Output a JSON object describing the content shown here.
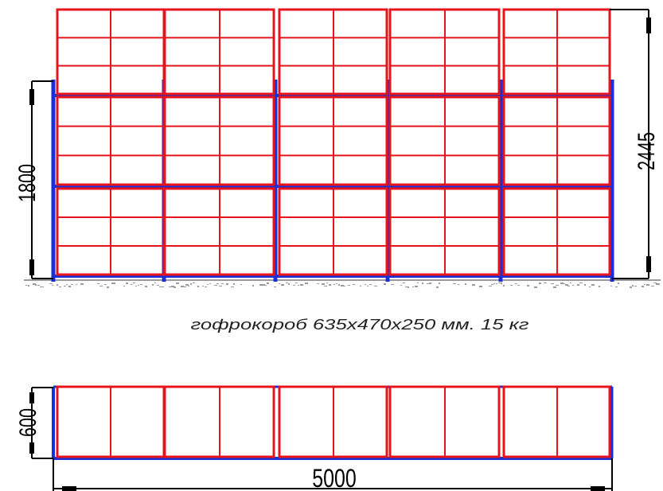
{
  "drawing": {
    "front_view": {
      "height_left": "1800",
      "height_right": "2445"
    },
    "caption": "гофрокороб 635x470x250 мм. 15 кг",
    "plan_view": {
      "depth": "600",
      "width": "5000"
    }
  },
  "colors": {
    "boxes": "#e8141c",
    "rack": "#1a2fd8",
    "dimension": "#000000",
    "floor": "#9a9a9a"
  }
}
